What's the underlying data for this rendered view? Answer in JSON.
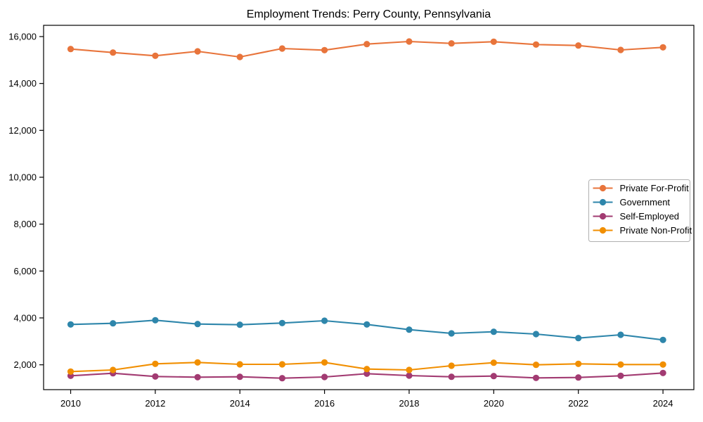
{
  "page": {
    "background": "#ffffff",
    "text_color": "#000000"
  },
  "chart_data": {
    "type": "line",
    "title": "Employment Trends: Perry County, Pennsylvania",
    "xlabel": "",
    "ylabel": "",
    "grid": false,
    "legend_position": "center right",
    "legend_border_color": "#b0b0b0",
    "axis_color": "#000000",
    "x": [
      2010,
      2011,
      2012,
      2013,
      2014,
      2015,
      2016,
      2017,
      2018,
      2019,
      2020,
      2021,
      2022,
      2023,
      2024
    ],
    "xticks": [
      2010,
      2012,
      2014,
      2016,
      2018,
      2020,
      2022,
      2024
    ],
    "yticks": [
      2000,
      4000,
      6000,
      8000,
      10000,
      12000,
      14000,
      16000
    ],
    "ytick_labels": [
      "2,000",
      "4,000",
      "6,000",
      "8,000",
      "10,000",
      "12,000",
      "14,000",
      "16,000"
    ],
    "xlim": [
      2009.36,
      2024.73
    ],
    "ylim": [
      940,
      16480
    ],
    "series": [
      {
        "name": "Private For-Profit",
        "color": "#E8743B",
        "values": [
          15470,
          15320,
          15180,
          15370,
          15130,
          15490,
          15420,
          15680,
          15790,
          15710,
          15780,
          15660,
          15620,
          15430,
          15540
        ]
      },
      {
        "name": "Government",
        "color": "#2E86AB",
        "values": [
          3720,
          3770,
          3900,
          3740,
          3710,
          3780,
          3880,
          3720,
          3500,
          3340,
          3410,
          3310,
          3140,
          3280,
          3060
        ]
      },
      {
        "name": "Self-Employed",
        "color": "#A23B72",
        "values": [
          1530,
          1640,
          1500,
          1470,
          1490,
          1430,
          1480,
          1620,
          1540,
          1490,
          1520,
          1440,
          1460,
          1530,
          1650
        ]
      },
      {
        "name": "Private Non-Profit",
        "color": "#F18F01",
        "values": [
          1710,
          1780,
          2040,
          2100,
          2020,
          2020,
          2100,
          1820,
          1780,
          1960,
          2090,
          2000,
          2040,
          2010,
          2010
        ]
      }
    ]
  }
}
